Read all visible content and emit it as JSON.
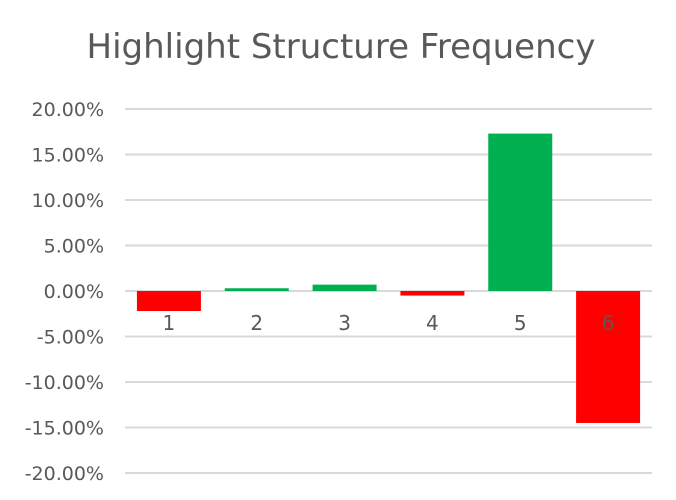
{
  "chart_data": {
    "type": "bar",
    "title": "Highlight Structure Frequency",
    "xlabel": "",
    "ylabel": "",
    "categories": [
      "1",
      "2",
      "3",
      "4",
      "5",
      "6"
    ],
    "values": [
      -2.2,
      0.3,
      0.7,
      -0.5,
      17.3,
      -14.5
    ],
    "ylim": [
      -20,
      20
    ],
    "yticks": [
      20,
      15,
      10,
      5,
      0,
      -5,
      -10,
      -15,
      -20
    ],
    "ytick_labels": [
      "20.00%",
      "15.00%",
      "10.00%",
      "5.00%",
      "0.00%",
      "-5.00%",
      "-10.00%",
      "-15.00%",
      "-20.00%"
    ],
    "grid": true,
    "legend": "none",
    "colors": {
      "positive": "#00b050",
      "negative": "#ff0000",
      "grid": "#d9d9d9",
      "text": "#595959"
    }
  }
}
